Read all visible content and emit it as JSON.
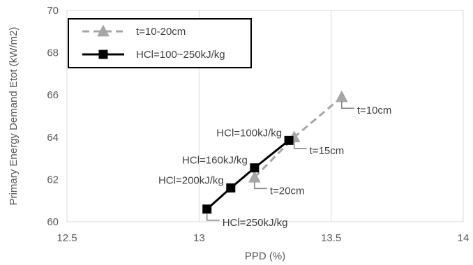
{
  "chart_data": {
    "type": "scatter",
    "xlabel": "PPD (%)",
    "ylabel": "Primary Energy Demand Etot (kW/m2)",
    "xlim": [
      12.5,
      14
    ],
    "ylim": [
      60,
      70
    ],
    "xticks": [
      12.5,
      13,
      13.5,
      14
    ],
    "yticks": [
      60,
      62,
      64,
      66,
      68,
      70
    ],
    "xtick_labels": [
      "12.5",
      "13",
      "13.5",
      "14"
    ],
    "ytick_labels": [
      "60",
      "62",
      "64",
      "66",
      "68",
      "70"
    ],
    "grid": "vertical",
    "legend_position": "top-left",
    "series": [
      {
        "name": "t=10-20cm",
        "marker": "triangle",
        "line": "dashed",
        "color": "#a6a6a6",
        "points": [
          {
            "x": 13.21,
            "y": 62.1
          },
          {
            "x": 13.36,
            "y": 64.0
          },
          {
            "x": 13.54,
            "y": 65.9
          }
        ]
      },
      {
        "name": "HCl=100~250kJ/kg",
        "marker": "square",
        "line": "solid",
        "color": "#000000",
        "points": [
          {
            "x": 13.03,
            "y": 60.6
          },
          {
            "x": 13.12,
            "y": 61.6
          },
          {
            "x": 13.21,
            "y": 62.55
          },
          {
            "x": 13.34,
            "y": 63.85
          }
        ]
      }
    ],
    "annotations": [
      {
        "text": "t=10cm",
        "x": 13.54,
        "y": 65.9,
        "side": "right"
      },
      {
        "text": "t=15cm",
        "x": 13.36,
        "y": 64.0,
        "side": "right"
      },
      {
        "text": "t=20cm",
        "x": 13.21,
        "y": 62.1,
        "side": "right"
      },
      {
        "text": "HCl=100kJ/kg",
        "x": 13.34,
        "y": 63.85,
        "side": "left"
      },
      {
        "text": "HCl=160kJ/kg",
        "x": 13.21,
        "y": 62.55,
        "side": "left"
      },
      {
        "text": "HCl=200kJ/kg",
        "x": 13.12,
        "y": 61.6,
        "side": "left"
      },
      {
        "text": "HCl=250kJ/kg",
        "x": 13.03,
        "y": 60.6,
        "side": "right"
      }
    ]
  }
}
